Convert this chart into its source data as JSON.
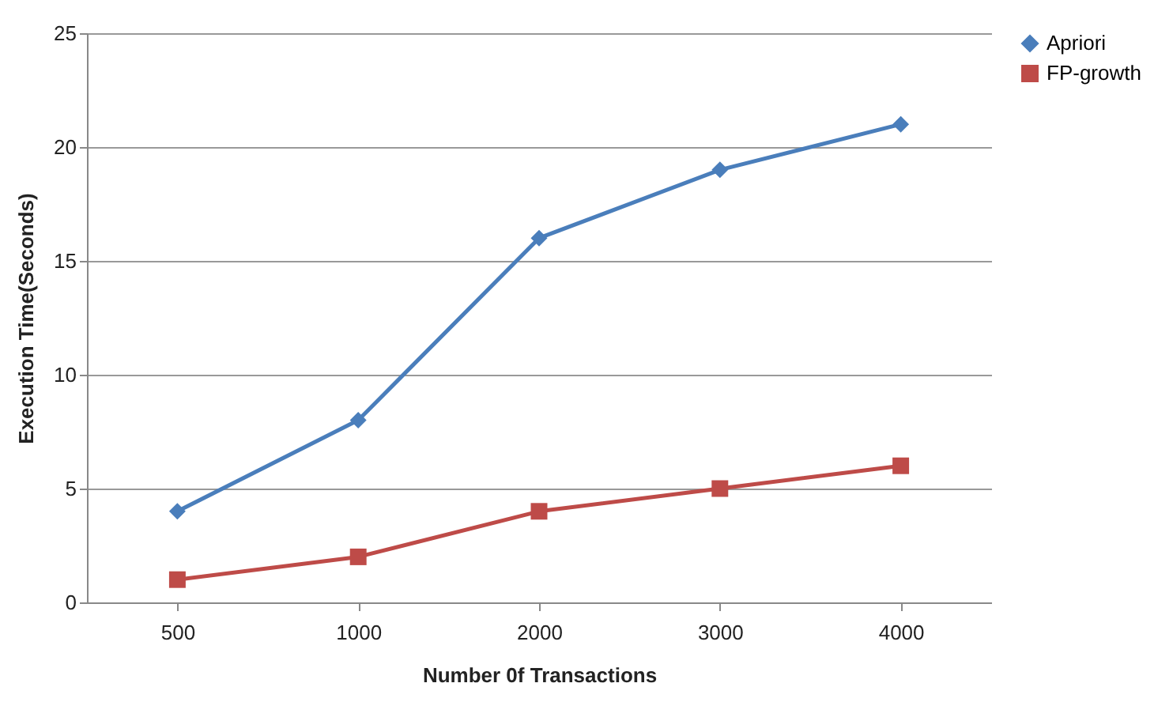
{
  "chart_data": {
    "type": "line",
    "xlabel": "Number 0f Transactions",
    "ylabel": "Execution Time(Seconds)",
    "categories": [
      "500",
      "1000",
      "2000",
      "3000",
      "4000"
    ],
    "series": [
      {
        "name": "Apriori",
        "color": "#4a7ebb",
        "marker": "diamond",
        "values": [
          4,
          8,
          16,
          19,
          21
        ]
      },
      {
        "name": "FP-growth",
        "color": "#be4b48",
        "marker": "square",
        "values": [
          1,
          2,
          4,
          5,
          6
        ]
      }
    ],
    "ylim": [
      0,
      25
    ],
    "yticks": [
      0,
      5,
      10,
      15,
      20,
      25
    ],
    "grid": "y",
    "legend": "right",
    "line_style": "solid"
  }
}
